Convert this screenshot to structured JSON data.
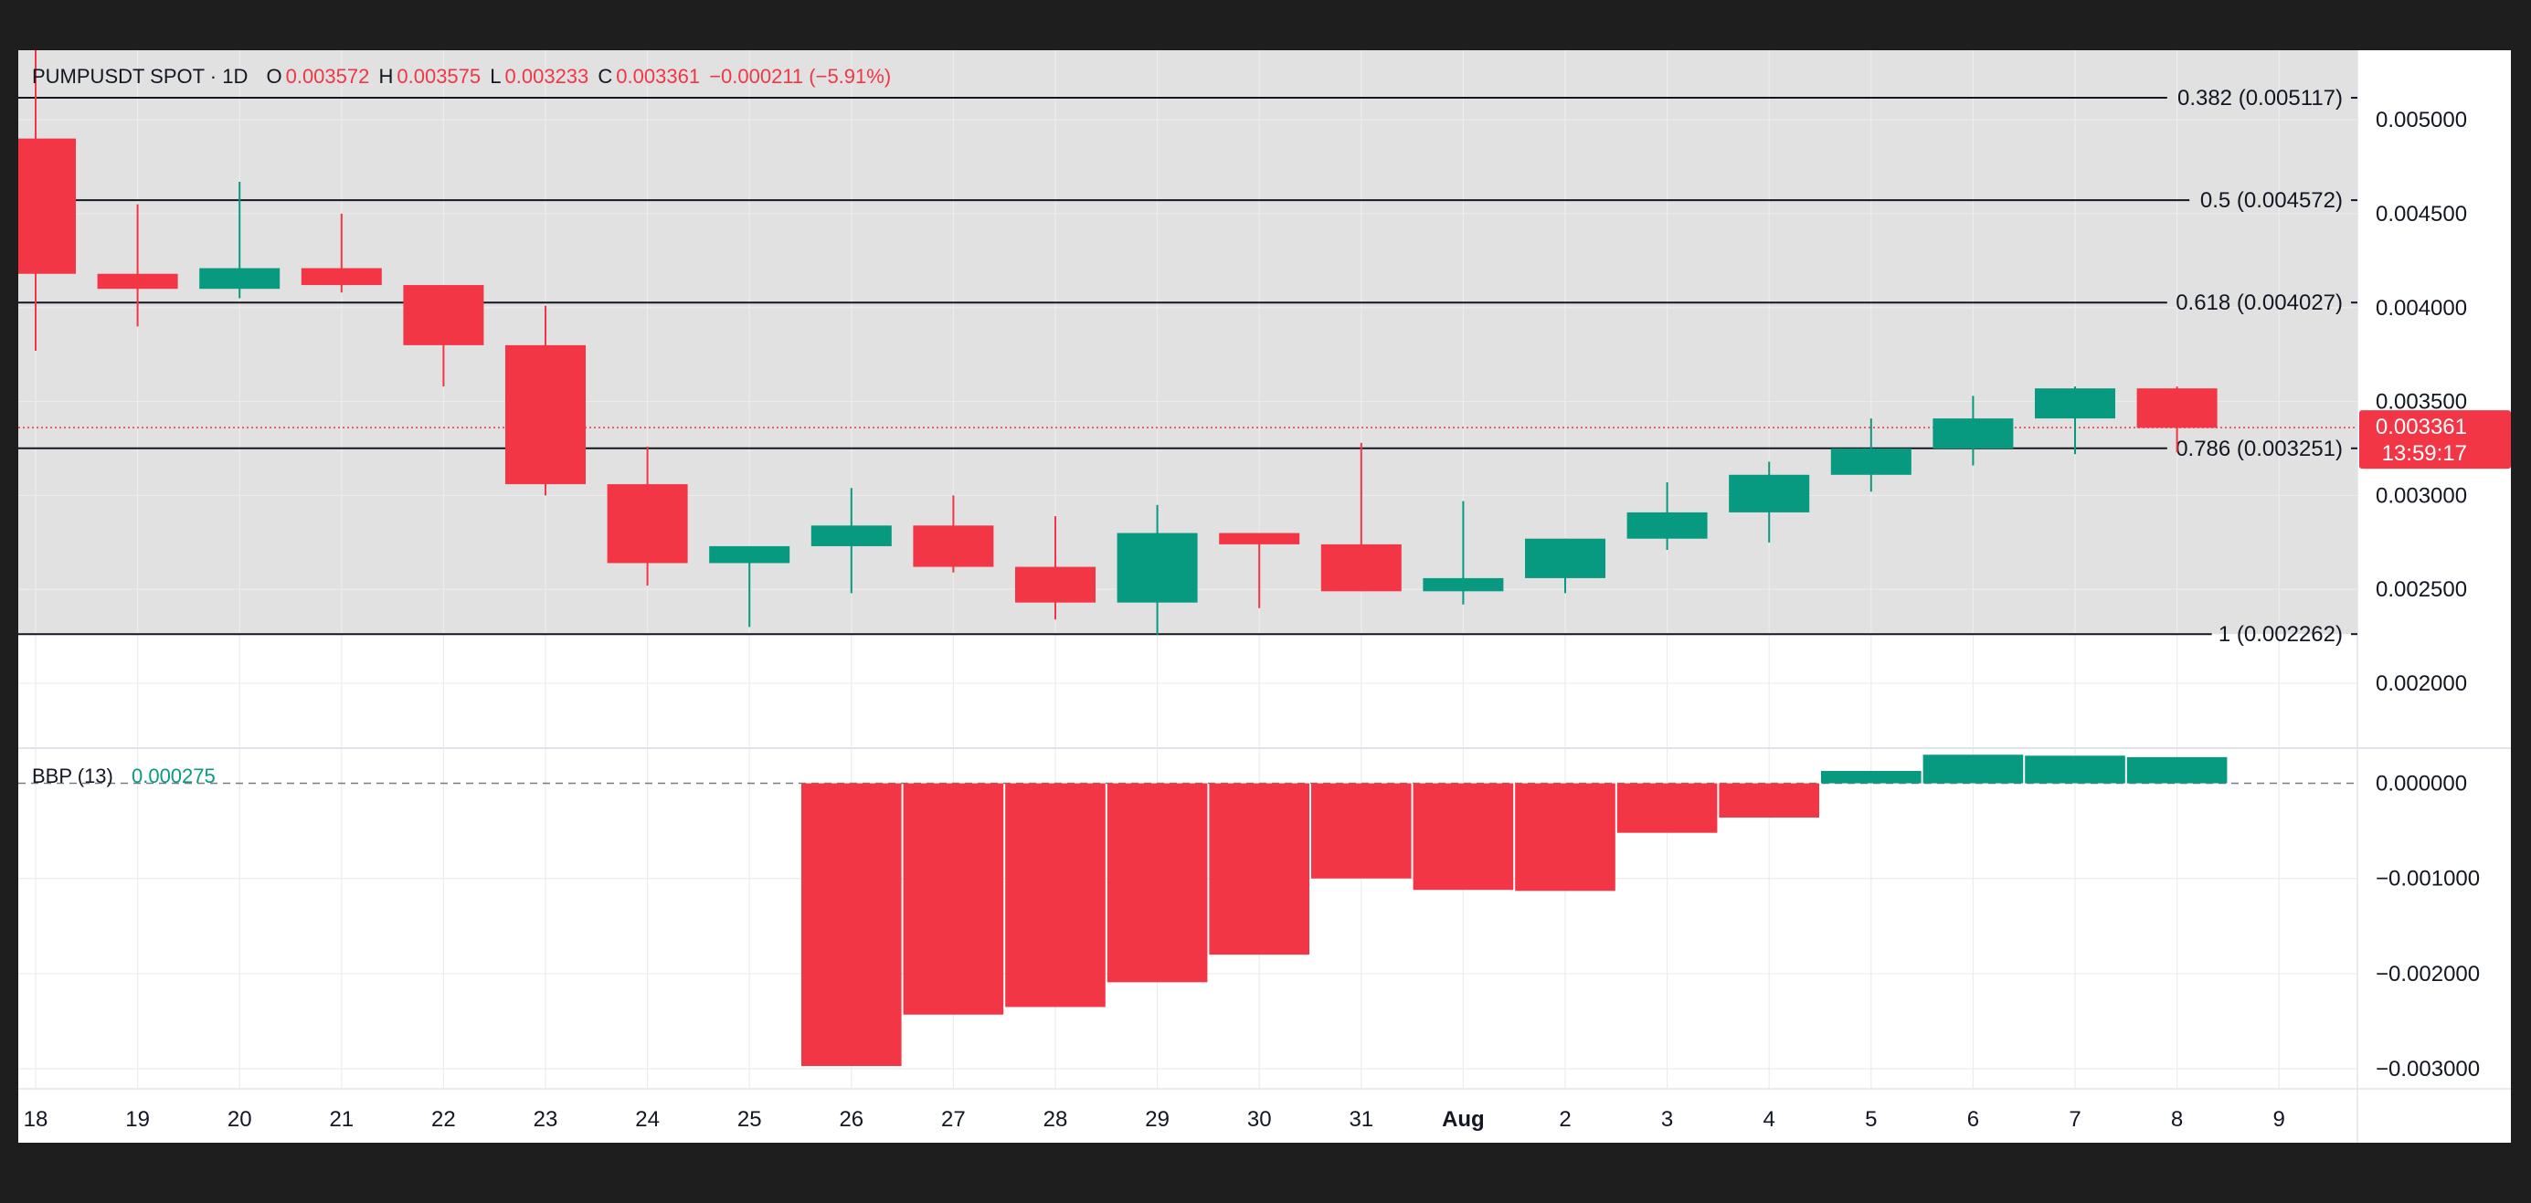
{
  "header": {
    "symbol": "PUMPUSDT SPOT · 1D",
    "o_label": "O",
    "o_value": "0.003572",
    "h_label": "H",
    "h_value": "0.003575",
    "l_label": "L",
    "l_value": "0.003233",
    "c_label": "C",
    "c_value": "0.003361",
    "change": "−0.000211 (−5.91%)"
  },
  "indicator": {
    "name": "BBP (13)",
    "value": "0.000275"
  },
  "colors": {
    "up": "#089981",
    "down": "#f23645",
    "shade": "#e1e1e1",
    "frame": "#1e1e1e",
    "text": "#131722",
    "grid": "#ececec"
  },
  "price_label": {
    "value": "0.003361",
    "countdown": "13:59:17"
  },
  "chart_data": [
    {
      "type": "candlestick",
      "x_tick_labels": [
        "18",
        "19",
        "20",
        "21",
        "22",
        "23",
        "24",
        "25",
        "26",
        "27",
        "28",
        "29",
        "30",
        "31",
        "Aug",
        "2",
        "3",
        "4",
        "5",
        "6",
        "7",
        "8",
        "9"
      ],
      "y_tick_labels": [
        "0.005000",
        "0.004500",
        "0.004000",
        "0.003500",
        "0.003000",
        "0.002500",
        "0.002000"
      ],
      "y_ticks": [
        0.005,
        0.0045,
        0.004,
        0.0035,
        0.003,
        0.0025,
        0.002
      ],
      "ylim": [
        0.00166,
        0.00537
      ],
      "last_price": 0.003361,
      "candles": [
        {
          "x": "18",
          "open": 0.0049,
          "high": 0.00537,
          "low": 0.00377,
          "close": 0.00418
        },
        {
          "x": "19",
          "open": 0.00418,
          "high": 0.00455,
          "low": 0.0039,
          "close": 0.0041
        },
        {
          "x": "20",
          "open": 0.0041,
          "high": 0.00467,
          "low": 0.00405,
          "close": 0.00421
        },
        {
          "x": "21",
          "open": 0.00421,
          "high": 0.0045,
          "low": 0.00408,
          "close": 0.00412
        },
        {
          "x": "22",
          "open": 0.00412,
          "high": 0.00412,
          "low": 0.00358,
          "close": 0.0038
        },
        {
          "x": "23",
          "open": 0.0038,
          "high": 0.00401,
          "low": 0.003,
          "close": 0.00306
        },
        {
          "x": "24",
          "open": 0.00306,
          "high": 0.00326,
          "low": 0.00252,
          "close": 0.00264
        },
        {
          "x": "25",
          "open": 0.00264,
          "high": 0.00273,
          "low": 0.0023,
          "close": 0.00273
        },
        {
          "x": "26",
          "open": 0.00273,
          "high": 0.00304,
          "low": 0.00248,
          "close": 0.00284
        },
        {
          "x": "27",
          "open": 0.00284,
          "high": 0.003,
          "low": 0.00259,
          "close": 0.00262
        },
        {
          "x": "28",
          "open": 0.00262,
          "high": 0.00289,
          "low": 0.00234,
          "close": 0.00243
        },
        {
          "x": "29",
          "open": 0.00243,
          "high": 0.00295,
          "low": 0.00226,
          "close": 0.0028
        },
        {
          "x": "30",
          "open": 0.0028,
          "high": 0.0028,
          "low": 0.0024,
          "close": 0.00274
        },
        {
          "x": "31",
          "open": 0.00274,
          "high": 0.00328,
          "low": 0.00249,
          "close": 0.00249
        },
        {
          "x": "Aug",
          "open": 0.00249,
          "high": 0.00297,
          "low": 0.00242,
          "close": 0.00256
        },
        {
          "x": "2",
          "open": 0.00256,
          "high": 0.00277,
          "low": 0.00248,
          "close": 0.00277
        },
        {
          "x": "3",
          "open": 0.00277,
          "high": 0.00307,
          "low": 0.00271,
          "close": 0.00291
        },
        {
          "x": "4",
          "open": 0.00291,
          "high": 0.00318,
          "low": 0.00275,
          "close": 0.00311
        },
        {
          "x": "5",
          "open": 0.00311,
          "high": 0.00341,
          "low": 0.00302,
          "close": 0.00325
        },
        {
          "x": "6",
          "open": 0.00325,
          "high": 0.00353,
          "low": 0.00316,
          "close": 0.00341
        },
        {
          "x": "7",
          "open": 0.00341,
          "high": 0.00358,
          "low": 0.00322,
          "close": 0.00357
        },
        {
          "x": "8",
          "open": 0.00357,
          "high": 0.00358,
          "low": 0.00323,
          "close": 0.00336
        }
      ],
      "fib_levels": [
        {
          "label": "0.382 (0.005117)",
          "price": 0.005117
        },
        {
          "label": "0.5 (0.004572)",
          "price": 0.004572
        },
        {
          "label": "0.618 (0.004027)",
          "price": 0.004027
        },
        {
          "label": "0.786 (0.003251)",
          "price": 0.003251
        },
        {
          "label": "1 (0.002262)",
          "price": 0.002262
        }
      ]
    },
    {
      "type": "bar",
      "title": "BBP (13)",
      "y_tick_labels": [
        "0.000000",
        "−0.001000",
        "−0.002000",
        "−0.003000"
      ],
      "y_ticks": [
        0,
        -0.001,
        -0.002,
        -0.003
      ],
      "ylim": [
        -0.0032,
        0.00036
      ],
      "categories": [
        "26",
        "27",
        "28",
        "29",
        "30",
        "31",
        "Aug",
        "2",
        "3",
        "4",
        "5",
        "6",
        "7",
        "8"
      ],
      "values": [
        -0.00297,
        -0.00243,
        -0.00235,
        -0.00209,
        -0.0018,
        -0.001,
        -0.00112,
        -0.00113,
        -0.00052,
        -0.00036,
        0.00013,
        0.0003,
        0.00029,
        0.000275
      ]
    }
  ]
}
